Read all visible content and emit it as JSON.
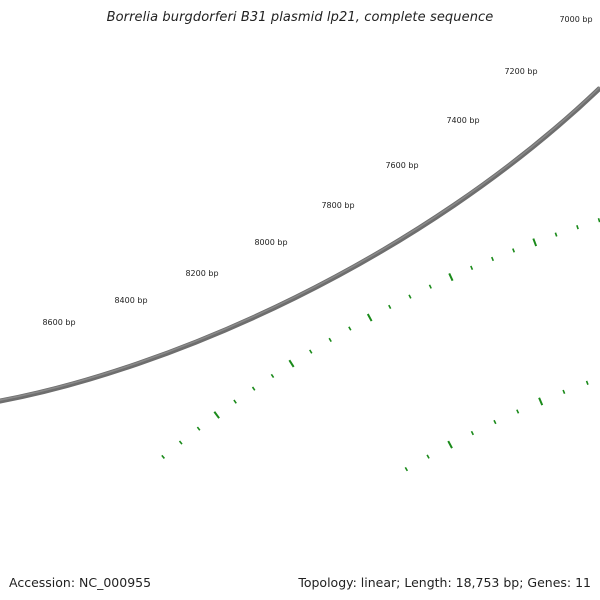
{
  "map": {
    "title": "Borrelia burgdorferi B31 plasmid lp21, complete sequence",
    "tick_labels": [
      "7000 bp",
      "7200 bp",
      "7400 bp",
      "7600 bp",
      "7800 bp",
      "8000 bp",
      "8200 bp",
      "8400 bp",
      "8600 bp"
    ],
    "backbone_color": "#737373",
    "tick_color": "#1a8a1a"
  },
  "footer": {
    "accession": "Accession: NC_000955",
    "summary": "Topology: linear; Length: 18,753 bp; Genes: 11"
  }
}
